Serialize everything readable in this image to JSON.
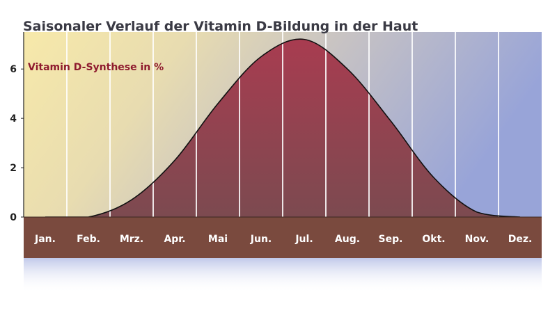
{
  "chart_data": {
    "type": "area",
    "title": "Saisonaler Verlauf der Vitamin D-Bildung in der Haut",
    "series_label": "Vitamin D-Synthese in %",
    "categories": [
      "Jan.",
      "Feb.",
      "Mrz.",
      "Apr.",
      "Mai",
      "Jun.",
      "Jul.",
      "Aug.",
      "Sep.",
      "Okt.",
      "Nov.",
      "Dez."
    ],
    "series": [
      {
        "values": [
          0,
          0,
          0.7,
          2.3,
          4.6,
          6.5,
          7.2,
          6.0,
          3.9,
          1.6,
          0.2,
          0
        ]
      }
    ],
    "y_ticks": [
      0,
      2,
      4,
      6
    ],
    "ylim": [
      0,
      7.5
    ],
    "grid": "vertical",
    "colors": {
      "curve_fill": "#9c3c4c",
      "axis_band": "#7a4a3e",
      "bg_warm": "#f6e6a8",
      "bg_cool": "#9aa6d6",
      "title_text": "#3a3a44",
      "series_label_text": "#8e1a2e"
    }
  }
}
